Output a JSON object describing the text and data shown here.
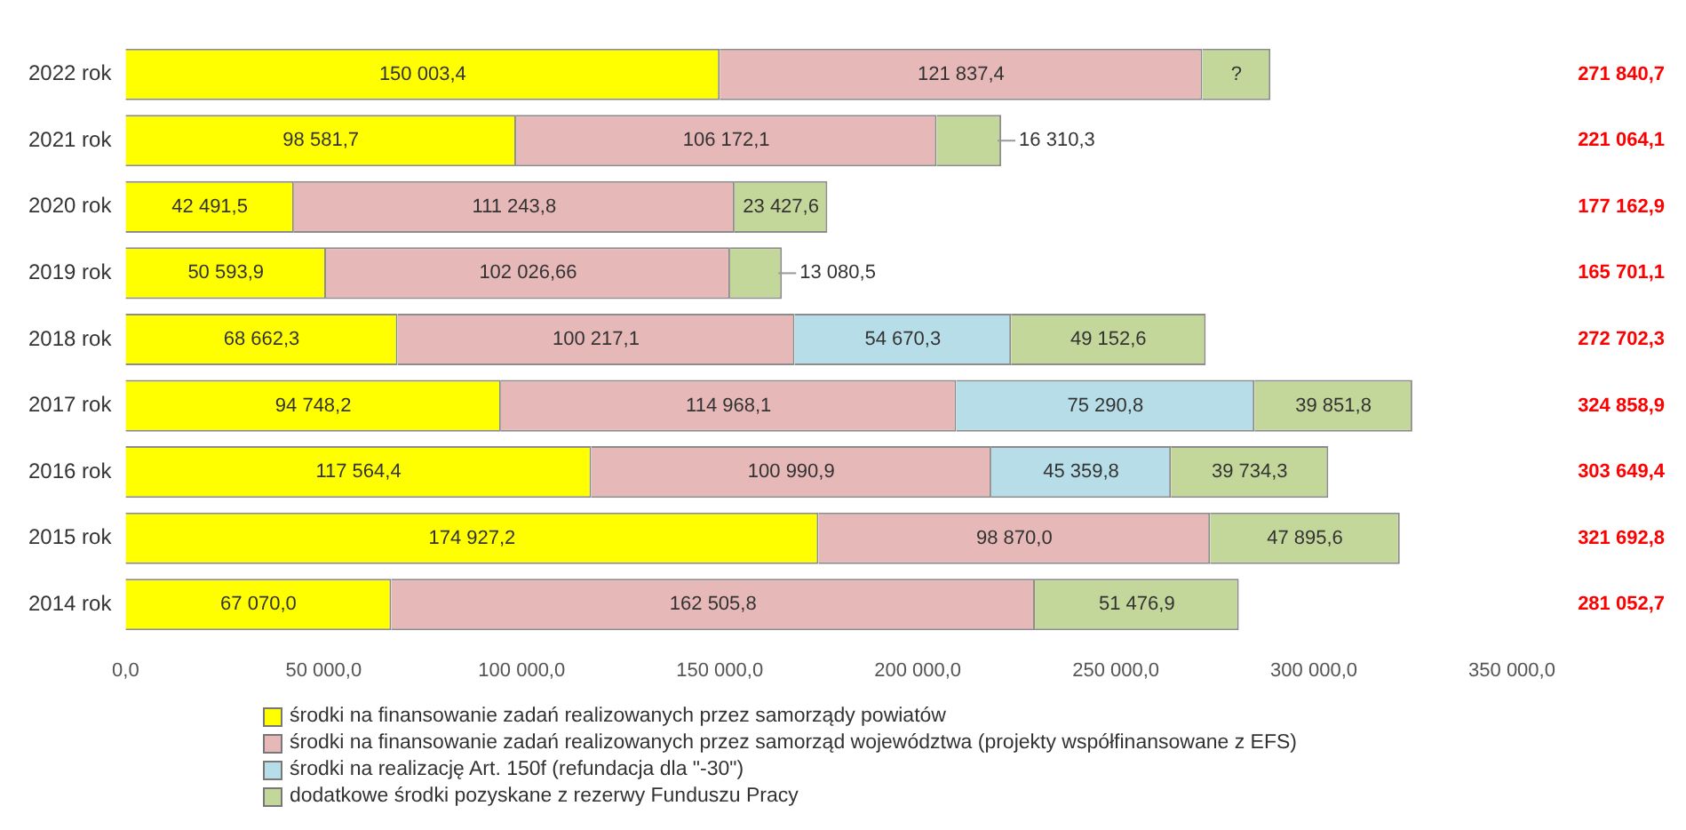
{
  "chart_data": {
    "type": "bar",
    "orientation": "horizontal",
    "stacked": true,
    "categories": [
      "2022 rok",
      "2021 rok",
      "2020 rok",
      "2019 rok",
      "2018 rok",
      "2017 rok",
      "2016 rok",
      "2015 rok",
      "2014 rok"
    ],
    "series": [
      {
        "name": "środki na finansowanie zadań realizowanych przez samorządy powiatów",
        "color": "#ffff00",
        "values": [
          150003.4,
          98581.7,
          42491.5,
          50593.9,
          68662.3,
          94748.2,
          117564.4,
          174927.2,
          67070.0
        ],
        "value_labels": [
          "150 003,4",
          "98 581,7",
          "42 491,5",
          "50 593,9",
          "68 662,3",
          "94 748,2",
          "117 564,4",
          "174 927,2",
          "67 070,0"
        ]
      },
      {
        "name": "środki na finansowanie zadań realizowanych przez samorząd województwa (projekty współfinansowane z EFS)",
        "color": "#e6b8b7",
        "values": [
          121837.4,
          106172.1,
          111243.8,
          102026.66,
          100217.1,
          114968.1,
          100990.9,
          98870.0,
          162505.8
        ],
        "value_labels": [
          "121 837,4",
          "106 172,1",
          "111 243,8",
          "102 026,66",
          "100 217,1",
          "114 968,1",
          "100 990,9",
          "98 870,0",
          "162 505,8"
        ]
      },
      {
        "name": "środki na realizację Art. 150f (refundacja dla \"-30\")",
        "color": "#b7dee8",
        "values": [
          null,
          null,
          null,
          null,
          54670.3,
          75290.8,
          45359.8,
          null,
          null
        ],
        "value_labels": [
          null,
          null,
          null,
          null,
          "54 670,3",
          "75 290,8",
          "45 359,8",
          null,
          null
        ]
      },
      {
        "name": "dodatkowe środki pozyskane z rezerwy Funduszu Pracy",
        "color": "#c4d79b",
        "values": [
          17200,
          16310.3,
          23427.6,
          13080.5,
          49152.6,
          39851.8,
          39734.3,
          47895.6,
          51476.9
        ],
        "value_labels": [
          "?",
          "16 310,3",
          "23 427,6",
          "13 080,5",
          "49 152,6",
          "39 851,8",
          "39 734,3",
          "47 895,6",
          "51 476,9"
        ]
      }
    ],
    "annotations": [
      "271 840,7",
      "221 064,1",
      "177 162,9",
      "165 701,1",
      "272 702,3",
      "324 858,9",
      "303 649,4",
      "321 692,8",
      "281 052,7"
    ],
    "xlim": [
      0,
      350000
    ],
    "xticks": [
      {
        "value": 0,
        "label": "0,0"
      },
      {
        "value": 50000,
        "label": "50 000,0"
      },
      {
        "value": 100000,
        "label": "100 000,0"
      },
      {
        "value": 150000,
        "label": "150 000,0"
      },
      {
        "value": 200000,
        "label": "200 000,0"
      },
      {
        "value": 250000,
        "label": "250 000,0"
      },
      {
        "value": 300000,
        "label": "300 000,0"
      },
      {
        "value": 350000,
        "label": "350 000,0"
      }
    ],
    "grid": false,
    "legend": "bottom"
  }
}
